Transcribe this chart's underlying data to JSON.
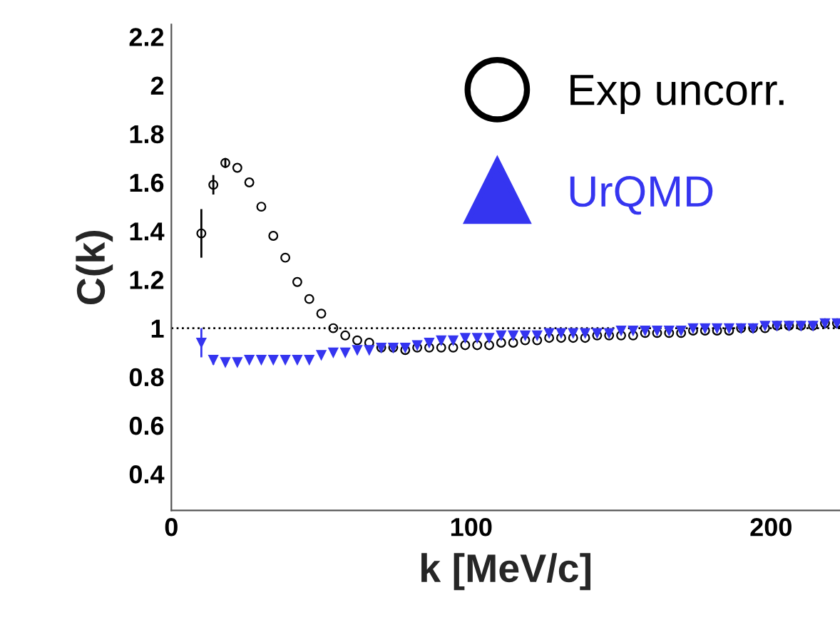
{
  "chart_data": {
    "type": "scatter",
    "xlabel": "k [MeV/c]",
    "ylabel": "C(k)",
    "xlim": [
      0,
      223
    ],
    "ylim": [
      0.25,
      2.25
    ],
    "xticks": [
      0,
      100,
      200
    ],
    "yticks": [
      0.4,
      0.6,
      0.8,
      1,
      1.2,
      1.4,
      1.6,
      1.8,
      2,
      2.2
    ],
    "legend": "top right",
    "grid": false,
    "ref_lines": [
      {
        "axis": "y",
        "value": 1,
        "line_style": "dotted",
        "color": "#000000"
      }
    ],
    "series": [
      {
        "name": "Exp uncorr.",
        "color": "#000000",
        "marker": "circle",
        "x": [
          10,
          14,
          18,
          22,
          26,
          30,
          34,
          38,
          42,
          46,
          50,
          54,
          58,
          62,
          66,
          70,
          74,
          78,
          82,
          86,
          90,
          94,
          98,
          102,
          106,
          110,
          114,
          118,
          122,
          126,
          130,
          134,
          138,
          142,
          146,
          150,
          154,
          158,
          162,
          166,
          170,
          174,
          178,
          182,
          186,
          190,
          194,
          198,
          202,
          206,
          210,
          214,
          218,
          222
        ],
        "values": [
          1.39,
          1.59,
          1.68,
          1.66,
          1.6,
          1.5,
          1.38,
          1.29,
          1.19,
          1.12,
          1.06,
          1.0,
          0.97,
          0.95,
          0.94,
          0.92,
          0.92,
          0.91,
          0.92,
          0.92,
          0.92,
          0.92,
          0.93,
          0.93,
          0.93,
          0.94,
          0.94,
          0.95,
          0.95,
          0.96,
          0.96,
          0.96,
          0.96,
          0.97,
          0.97,
          0.97,
          0.97,
          0.98,
          0.98,
          0.98,
          0.98,
          0.99,
          0.99,
          0.99,
          0.99,
          1.0,
          1.0,
          1.0,
          1.01,
          1.01,
          1.01,
          1.01,
          1.02,
          1.02
        ],
        "errors": [
          0.1,
          0.04,
          0.02,
          null,
          null,
          null,
          null,
          null,
          null,
          null,
          null,
          null,
          null,
          null,
          null,
          null,
          null,
          null,
          null,
          null,
          null,
          null,
          null,
          null,
          null,
          null,
          null,
          null,
          null,
          null,
          null,
          null,
          null,
          null,
          null,
          null,
          null,
          null,
          null,
          null,
          null,
          null,
          null,
          null,
          null,
          null,
          null,
          null,
          null,
          null,
          null,
          null,
          null,
          null
        ]
      },
      {
        "name": "UrQMD",
        "color": "#3535f0",
        "marker": "triangle",
        "x": [
          10,
          14,
          18,
          22,
          26,
          30,
          34,
          38,
          42,
          46,
          50,
          54,
          58,
          62,
          66,
          70,
          74,
          78,
          82,
          86,
          90,
          94,
          98,
          102,
          106,
          110,
          114,
          118,
          122,
          126,
          130,
          134,
          138,
          142,
          146,
          150,
          154,
          158,
          162,
          166,
          170,
          174,
          178,
          182,
          186,
          190,
          194,
          198,
          202,
          206,
          210,
          214,
          218,
          222
        ],
        "values": [
          0.94,
          0.87,
          0.86,
          0.86,
          0.87,
          0.87,
          0.87,
          0.87,
          0.87,
          0.87,
          0.89,
          0.9,
          0.9,
          0.91,
          0.91,
          0.92,
          0.92,
          0.92,
          0.93,
          0.94,
          0.95,
          0.95,
          0.96,
          0.96,
          0.96,
          0.97,
          0.97,
          0.97,
          0.97,
          0.98,
          0.98,
          0.98,
          0.98,
          0.98,
          0.98,
          0.99,
          0.99,
          0.99,
          0.99,
          0.99,
          0.99,
          1.0,
          1.0,
          1.0,
          1.0,
          1.0,
          1.0,
          1.01,
          1.01,
          1.01,
          1.01,
          1.01,
          1.02,
          1.02
        ],
        "errors": [
          0.06,
          0.02,
          null,
          null,
          null,
          null,
          null,
          null,
          null,
          null,
          null,
          null,
          null,
          null,
          null,
          null,
          null,
          null,
          null,
          null,
          null,
          null,
          null,
          null,
          null,
          null,
          null,
          null,
          null,
          null,
          null,
          null,
          null,
          null,
          null,
          null,
          null,
          null,
          null,
          null,
          null,
          null,
          null,
          null,
          null,
          null,
          null,
          null,
          null,
          null,
          null,
          null,
          null,
          null
        ]
      }
    ]
  }
}
